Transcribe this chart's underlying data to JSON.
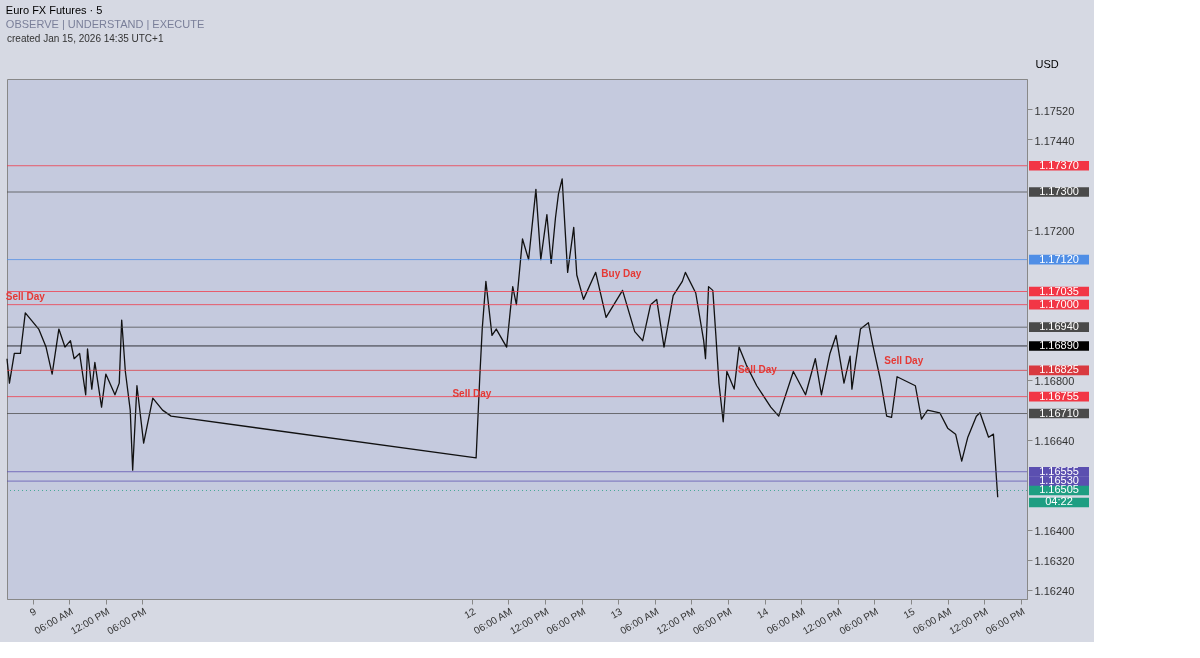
{
  "chart_data": {
    "type": "line",
    "title": "Euro FX Futures · 5",
    "subtitle": "OBSERVE | UNDERSTAND | EXECUTE",
    "ylabel": "USD",
    "annotations": [
      "created Jan 15, 2026 14:35 UTC+1",
      {
        "text": "Sell Day",
        "x": "2026-01-08T22:48",
        "y": 1.16978
      },
      {
        "text": "Sell Day",
        "x": "2026-01-12T00:00",
        "y": 1.16719
      },
      {
        "text": "Buy Day",
        "x": "2026-01-13T00:30",
        "y": 1.17038
      },
      {
        "text": "Sell Day",
        "x": "2026-01-13T22:48",
        "y": 1.16784
      },
      {
        "text": "Sell Day",
        "x": "2026-01-14T22:48",
        "y": 1.16808
      }
    ],
    "x": [
      "2026-01-08T19:48",
      "2026-01-08T20:12",
      "2026-01-08T21:00",
      "2026-01-08T22:00",
      "2026-01-08T22:48",
      "2026-01-09T01:00",
      "2026-01-09T02:12",
      "2026-01-09T03:12",
      "2026-01-09T04:18",
      "2026-01-09T05:18",
      "2026-01-09T06:12",
      "2026-01-09T06:48",
      "2026-01-09T07:42",
      "2026-01-09T08:42",
      "2026-01-09T09:00",
      "2026-01-09T09:42",
      "2026-01-09T10:12",
      "2026-01-09T11:18",
      "2026-01-09T12:00",
      "2026-01-09T13:30",
      "2026-01-09T14:12",
      "2026-01-09T14:36",
      "2026-01-09T15:12",
      "2026-01-09T16:00",
      "2026-01-09T16:24",
      "2026-01-09T17:06",
      "2026-01-09T18:12",
      "2026-01-09T19:42",
      "2026-01-09T21:18",
      "2026-01-09T22:42",
      "2026-01-12T00:42",
      "2026-01-12T01:18",
      "2026-01-12T01:42",
      "2026-01-12T02:18",
      "2026-01-12T03:18",
      "2026-01-12T04:00",
      "2026-01-12T05:42",
      "2026-01-12T06:42",
      "2026-01-12T07:18",
      "2026-01-12T08:18",
      "2026-01-12T09:18",
      "2026-01-12T10:30",
      "2026-01-12T11:18",
      "2026-01-12T12:18",
      "2026-01-12T13:00",
      "2026-01-12T13:42",
      "2026-01-12T14:12",
      "2026-01-12T14:48",
      "2026-01-12T15:42",
      "2026-01-12T16:42",
      "2026-01-12T17:12",
      "2026-01-12T18:18",
      "2026-01-12T20:18",
      "2026-01-12T22:00",
      "2026-01-13T00:42",
      "2026-01-13T02:42",
      "2026-01-13T04:00",
      "2026-01-13T05:18",
      "2026-01-13T06:18",
      "2026-01-13T07:30",
      "2026-01-13T09:00",
      "2026-01-13T10:30",
      "2026-01-13T11:00",
      "2026-01-13T12:42",
      "2026-01-13T14:00",
      "2026-01-13T14:18",
      "2026-01-13T14:48",
      "2026-01-13T15:30",
      "2026-01-13T16:00",
      "2026-01-13T16:30",
      "2026-01-13T17:12",
      "2026-01-13T17:48",
      "2026-01-13T19:00",
      "2026-01-13T19:48",
      "2026-01-13T21:00",
      "2026-01-13T22:42",
      "2026-01-14T01:00",
      "2026-01-14T02:18",
      "2026-01-14T04:42",
      "2026-01-14T06:42",
      "2026-01-14T08:18",
      "2026-01-14T09:18",
      "2026-01-14T10:42",
      "2026-01-14T11:42",
      "2026-01-14T13:00",
      "2026-01-14T14:00",
      "2026-01-14T14:18",
      "2026-01-14T15:42",
      "2026-01-14T17:00",
      "2026-01-14T17:42",
      "2026-01-14T19:00",
      "2026-01-14T20:00",
      "2026-01-14T20:48",
      "2026-01-14T21:42",
      "2026-01-15T00:42",
      "2026-01-15T01:42",
      "2026-01-15T02:42",
      "2026-01-15T04:42",
      "2026-01-15T06:00",
      "2026-01-15T07:18",
      "2026-01-15T08:18",
      "2026-01-15T09:18",
      "2026-01-15T10:42",
      "2026-01-15T11:18",
      "2026-01-15T12:42",
      "2026-01-15T13:30",
      "2026-01-15T13:48",
      "2026-01-15T14:12"
    ],
    "series": [
      {
        "color": "#111111",
        "values": [
          1.16856,
          1.16791,
          1.1687,
          1.1687,
          1.16978,
          1.16935,
          1.16887,
          1.16815,
          1.16935,
          1.16887,
          1.16904,
          1.16856,
          1.1687,
          1.1676,
          1.16882,
          1.16775,
          1.16846,
          1.16727,
          1.16815,
          1.1676,
          1.16791,
          1.16959,
          1.16822,
          1.16719,
          1.16559,
          1.16784,
          1.16631,
          1.16751,
          1.16719,
          1.16703,
          1.16592,
          1.16808,
          1.16935,
          1.17062,
          1.16918,
          1.16935,
          1.16887,
          1.17048,
          1.17,
          1.17175,
          1.1712,
          1.17307,
          1.1712,
          1.1724,
          1.1711,
          1.1723,
          1.17295,
          1.17335,
          1.17086,
          1.17206,
          1.17079,
          1.17014,
          1.17086,
          1.16966,
          1.17038,
          1.16928,
          1.16904,
          1.17,
          1.17014,
          1.16887,
          1.17024,
          1.17062,
          1.17086,
          1.17031,
          1.16904,
          1.16856,
          1.17048,
          1.17038,
          1.16918,
          1.16791,
          1.16688,
          1.16822,
          1.16775,
          1.16887,
          1.16839,
          1.16784,
          1.16727,
          1.16703,
          1.16822,
          1.1676,
          1.16856,
          1.1676,
          1.1687,
          1.16918,
          1.16791,
          1.16863,
          1.16775,
          1.16935,
          1.16952,
          1.16894,
          1.16798,
          1.16703,
          1.167,
          1.16808,
          1.16784,
          1.16695,
          1.16719,
          1.16712,
          1.16671,
          1.16655,
          1.16583,
          1.16647,
          1.16703,
          1.16712,
          1.16647,
          1.16655,
          1.16583,
          1.16487
        ]
      }
    ],
    "xlim": [
      "2026-01-08T19:48",
      "2026-01-15T19:00"
    ],
    "xticks": [
      {
        "value": "2026-01-09T00:00",
        "label": "9"
      },
      {
        "value": "2026-01-09T06:00",
        "label": "06:00 AM"
      },
      {
        "value": "2026-01-09T12:00",
        "label": "12:00 PM"
      },
      {
        "value": "2026-01-09T18:00",
        "label": "06:00 PM"
      },
      {
        "value": "2026-01-12T00:00",
        "label": "12"
      },
      {
        "value": "2026-01-12T06:00",
        "label": "06:00 AM"
      },
      {
        "value": "2026-01-12T12:00",
        "label": "12:00 PM"
      },
      {
        "value": "2026-01-12T18:00",
        "label": "06:00 PM"
      },
      {
        "value": "2026-01-13T00:00",
        "label": "13"
      },
      {
        "value": "2026-01-13T06:00",
        "label": "06:00 AM"
      },
      {
        "value": "2026-01-13T12:00",
        "label": "12:00 PM"
      },
      {
        "value": "2026-01-13T18:00",
        "label": "06:00 PM"
      },
      {
        "value": "2026-01-14T00:00",
        "label": "14"
      },
      {
        "value": "2026-01-14T06:00",
        "label": "06:00 AM"
      },
      {
        "value": "2026-01-14T12:00",
        "label": "12:00 PM"
      },
      {
        "value": "2026-01-14T18:00",
        "label": "06:00 PM"
      },
      {
        "value": "2026-01-15T00:00",
        "label": "15"
      },
      {
        "value": "2026-01-15T06:00",
        "label": "06:00 AM"
      },
      {
        "value": "2026-01-15T12:00",
        "label": "12:00 PM"
      },
      {
        "value": "2026-01-15T18:00",
        "label": "06:00 PM"
      }
    ],
    "ylim": [
      1.16216,
      1.17601
    ],
    "yticks": [
      {
        "value": 1.1752,
        "label": "1.17520"
      },
      {
        "value": 1.1744,
        "label": "1.17440"
      },
      {
        "value": 1.172,
        "label": "1.17200"
      },
      {
        "value": 1.168,
        "label": "1.16800"
      },
      {
        "value": 1.1664,
        "label": "1.16640"
      },
      {
        "value": 1.164,
        "label": "1.16400"
      },
      {
        "value": 1.1632,
        "label": "1.16320"
      },
      {
        "value": 1.1624,
        "label": "1.16240"
      }
    ],
    "ref_lines": [
      {
        "axis": "y",
        "value": 1.1737,
        "label": "1.17370",
        "color": "#f23645"
      },
      {
        "axis": "y",
        "value": 1.173,
        "label": "1.17300",
        "color": "#4a4a4a"
      },
      {
        "axis": "y",
        "value": 1.1712,
        "label": "1.17120",
        "color": "#4f8ee6"
      },
      {
        "axis": "y",
        "value": 1.17035,
        "label": "1.17035",
        "color": "#f23645"
      },
      {
        "axis": "y",
        "value": 1.17,
        "label": "1.17000",
        "color": "#f23645"
      },
      {
        "axis": "y",
        "value": 1.1694,
        "label": "1.16940",
        "color": "#4a4a4a"
      },
      {
        "axis": "y",
        "value": 1.1689,
        "label": "1.16890",
        "color": "#000000"
      },
      {
        "axis": "y",
        "value": 1.16825,
        "label": "1.16825",
        "color": "#d9393f"
      },
      {
        "axis": "y",
        "value": 1.16755,
        "label": "1.16755",
        "color": "#f23645"
      },
      {
        "axis": "y",
        "value": 1.1671,
        "label": "1.16710",
        "color": "#4a4a4a"
      },
      {
        "axis": "y",
        "value": 1.16555,
        "label": "1.16555",
        "color": "#5b4fb0"
      },
      {
        "axis": "y",
        "value": 1.1653,
        "label": "1.16530",
        "color": "#5b4fb0"
      },
      {
        "axis": "y",
        "value": 1.16505,
        "label": "1.16505 04:22",
        "color": "#1e9e82",
        "line_style": "dotted"
      }
    ],
    "grid": false
  }
}
